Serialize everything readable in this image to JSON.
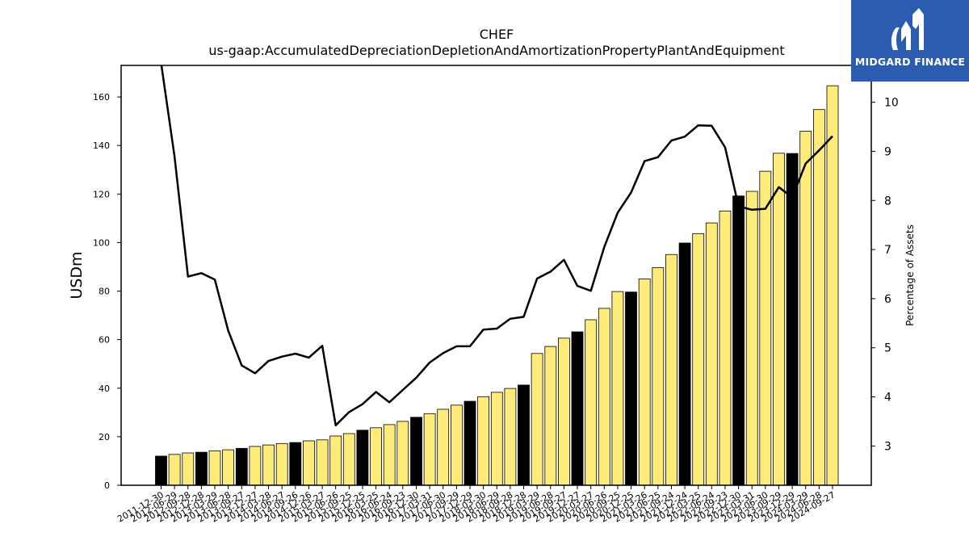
{
  "chart_data": {
    "type": "bar",
    "title": "CHEF",
    "subtitle": "us-gaap:AccumulatedDepreciationDepletionAndAmortizationPropertyPlantAndEquipment",
    "ylabel": "USDm",
    "y2label": "Percentage of Assets",
    "ylim": [
      0,
      173
    ],
    "y2lim": [
      2.2,
      10.75
    ],
    "yticks": [
      0,
      20,
      40,
      60,
      80,
      100,
      120,
      140,
      160
    ],
    "y2ticks": [
      3,
      4,
      5,
      6,
      7,
      8,
      9,
      10
    ],
    "bar_color": "#ffeb7a",
    "highlight_color": "#000000",
    "line_color": "#000000",
    "categories": [
      "2011-12-30",
      "2012-06-29",
      "2012-09-28",
      "2012-12-28",
      "2013-03-29",
      "2013-06-28",
      "2013-09-27",
      "2013-12-27",
      "2014-03-28",
      "2014-06-27",
      "2014-09-26",
      "2014-12-26",
      "2015-03-27",
      "2015-06-26",
      "2015-09-25",
      "2015-12-25",
      "2016-03-25",
      "2016-06-24",
      "2016-09-23",
      "2016-12-30",
      "2017-03-31",
      "2017-06-30",
      "2017-09-29",
      "2017-12-29",
      "2018-03-30",
      "2018-06-29",
      "2018-09-28",
      "2018-12-28",
      "2019-03-29",
      "2019-06-28",
      "2019-09-27",
      "2019-12-27",
      "2020-03-27",
      "2020-06-26",
      "2020-09-25",
      "2020-12-25",
      "2021-03-26",
      "2021-06-25",
      "2021-09-24",
      "2021-12-24",
      "2022-03-25",
      "2022-06-24",
      "2022-09-23",
      "2022-12-30",
      "2023-03-31",
      "2023-06-30",
      "2023-09-29",
      "2023-12-29",
      "2024-03-29",
      "2024-06-28",
      "2024-09-27"
    ],
    "series": [
      {
        "values": [
          12,
          12.7,
          13.3,
          13.6,
          14.2,
          14.6,
          15.2,
          16,
          16.6,
          17.2,
          17.6,
          18.3,
          18.7,
          20.3,
          21.3,
          22.7,
          23.7,
          25,
          26.3,
          28,
          29.5,
          31.3,
          33,
          34.6,
          36.5,
          38.3,
          39.9,
          41.3,
          54.3,
          57.2,
          60.6,
          63.2,
          68.2,
          72.9,
          79.8,
          79.6,
          85,
          89.7,
          95.1,
          99.8,
          103.7,
          108.1,
          113,
          119.2,
          121.1,
          129.4,
          136.8,
          136.7,
          145.9,
          154.8,
          164.6
        ],
        "highlight": [
          true,
          false,
          false,
          true,
          false,
          false,
          true,
          false,
          false,
          false,
          true,
          false,
          false,
          false,
          false,
          true,
          false,
          false,
          false,
          true,
          false,
          false,
          false,
          true,
          false,
          false,
          false,
          true,
          false,
          false,
          false,
          true,
          false,
          false,
          false,
          true,
          false,
          false,
          false,
          true,
          false,
          false,
          false,
          true,
          false,
          false,
          false,
          true,
          false,
          false,
          false
        ]
      },
      {
        "axis": "right",
        "values": [
          10.8,
          8.9,
          6.45,
          6.52,
          6.39,
          5.35,
          4.64,
          4.48,
          4.73,
          4.82,
          4.88,
          4.8,
          5.04,
          3.42,
          3.69,
          3.85,
          4.1,
          3.89,
          4.14,
          4.39,
          4.7,
          4.89,
          5.03,
          5.03,
          5.37,
          5.39,
          5.59,
          5.63,
          6.41,
          6.55,
          6.79,
          6.26,
          6.16,
          7.05,
          7.75,
          8.16,
          8.8,
          8.88,
          9.22,
          9.3,
          9.53,
          9.52,
          9.08,
          7.88,
          7.81,
          7.83,
          8.27,
          8.06,
          8.75,
          9.02,
          9.31
        ]
      }
    ]
  },
  "logo": {
    "text": "MIDGARD FINANCE"
  }
}
